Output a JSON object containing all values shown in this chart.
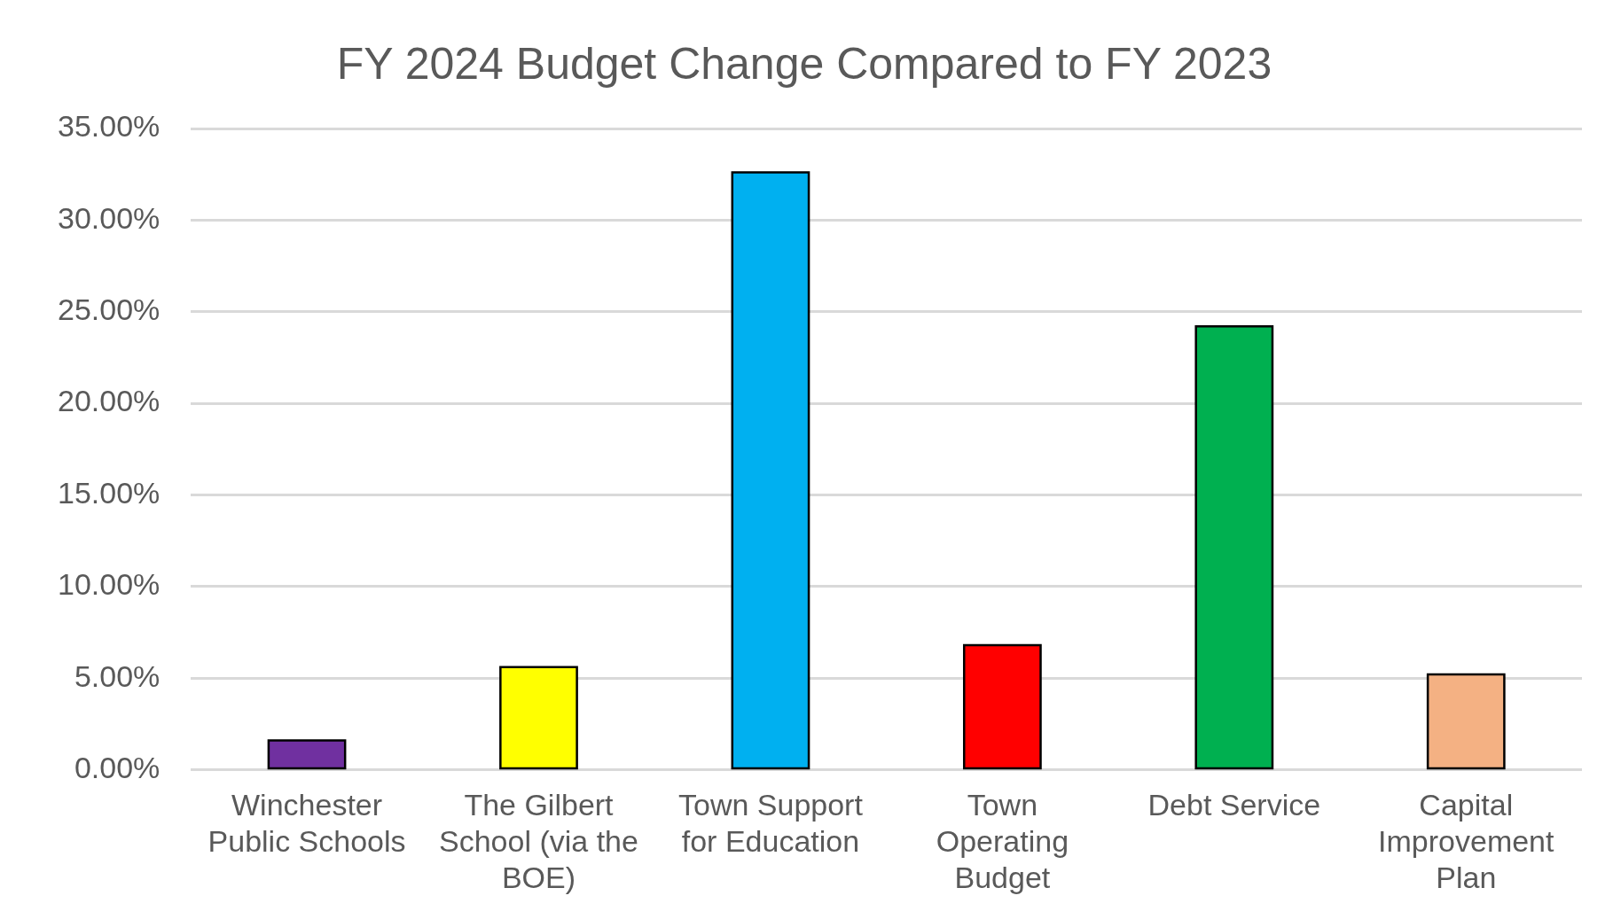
{
  "chart_data": {
    "type": "bar",
    "title": "FY 2024 Budget Change Compared to FY 2023",
    "categories": [
      "Winchester Public Schools",
      "The Gilbert School (via the BOE)",
      "Town Support for Education",
      "Town Operating Budget",
      "Debt Service",
      "Capital Improvement Plan"
    ],
    "values": [
      1.6,
      5.6,
      32.6,
      6.8,
      24.2,
      5.2
    ],
    "colors": [
      "#7030a0",
      "#ffff00",
      "#00b0f0",
      "#ff0000",
      "#00b050",
      "#f4b183"
    ],
    "ylim": [
      0,
      35
    ],
    "yticks": [
      {
        "value": 0,
        "label": "0.00%"
      },
      {
        "value": 5,
        "label": "5.00%"
      },
      {
        "value": 10,
        "label": "10.00%"
      },
      {
        "value": 15,
        "label": "15.00%"
      },
      {
        "value": 20,
        "label": "20.00%"
      },
      {
        "value": 25,
        "label": "25.00%"
      },
      {
        "value": 30,
        "label": "30.00%"
      },
      {
        "value": 35,
        "label": "35.00%"
      }
    ],
    "grid": "y",
    "legend": false
  }
}
